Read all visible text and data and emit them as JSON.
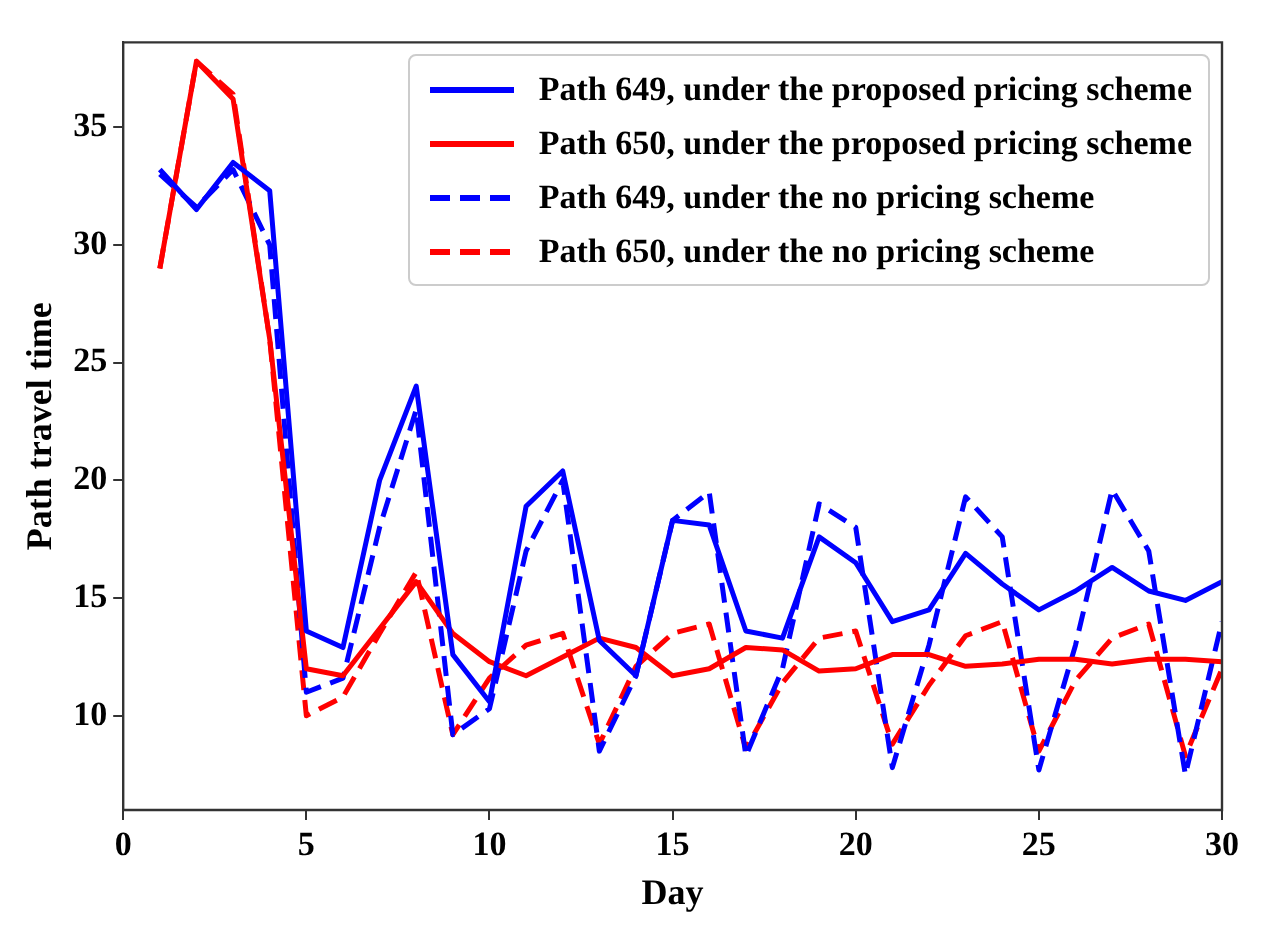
{
  "chart_data": {
    "type": "line",
    "xlabel": "Day",
    "ylabel": "Path travel time",
    "xlim": [
      0,
      30
    ],
    "xticks": [
      0,
      5,
      10,
      15,
      20,
      25,
      30
    ],
    "ylim": [
      6,
      38.6
    ],
    "yticks": [
      10,
      15,
      20,
      25,
      30,
      35
    ],
    "grid": false,
    "legend": "top right",
    "marker": "none",
    "x": [
      1,
      2,
      3,
      4,
      5,
      6,
      7,
      8,
      9,
      10,
      11,
      12,
      13,
      14,
      15,
      16,
      17,
      18,
      19,
      20,
      21,
      22,
      23,
      24,
      25,
      26,
      27,
      28,
      29,
      30
    ],
    "series": [
      {
        "name": "Path 649, under the proposed pricing scheme",
        "color": "#0000ff",
        "line_style": "solid",
        "values": [
          33.2,
          31.5,
          33.5,
          32.3,
          13.6,
          12.9,
          20,
          24,
          12.6,
          10.6,
          18.9,
          20.4,
          13.2,
          11.7,
          18.3,
          18.1,
          13.6,
          13.3,
          17.6,
          16.5,
          14,
          14.5,
          16.9,
          15.6,
          14.5,
          15.3,
          16.3,
          15.3,
          14.9,
          15.7
        ]
      },
      {
        "name": "Path 650, under the proposed pricing scheme",
        "color": "#ff0000",
        "line_style": "solid",
        "values": [
          29,
          37.8,
          36.2,
          26,
          12,
          11.7,
          13.7,
          15.7,
          13.5,
          12.3,
          11.7,
          12.5,
          13.3,
          12.9,
          11.7,
          12,
          12.9,
          12.8,
          11.9,
          12,
          12.6,
          12.6,
          12.1,
          12.2,
          12.4,
          12.4,
          12.2,
          12.4,
          12.4,
          12.3
        ]
      },
      {
        "name": "Path 649, under the no pricing scheme",
        "color": "#0000ff",
        "line_style": "dashed",
        "values": [
          33,
          31.6,
          33.2,
          30,
          11,
          11.6,
          18,
          23,
          9.2,
          10.3,
          17,
          20,
          8.5,
          11.7,
          18.3,
          19.5,
          8.3,
          12,
          19,
          18,
          7.8,
          13,
          19.3,
          17.6,
          7.7,
          13,
          19.6,
          17,
          7.5,
          14
        ]
      },
      {
        "name": "Path 650, under the no pricing scheme",
        "color": "#ff0000",
        "line_style": "dashed",
        "values": [
          29,
          37.8,
          36.4,
          26,
          10,
          10.8,
          13.5,
          16.1,
          9.2,
          11.6,
          13,
          13.5,
          8.8,
          12.1,
          13.5,
          13.9,
          8.6,
          11.4,
          13.3,
          13.6,
          8.8,
          11.3,
          13.4,
          14,
          8.5,
          11.5,
          13.3,
          13.9,
          8.3,
          12
        ]
      }
    ]
  }
}
